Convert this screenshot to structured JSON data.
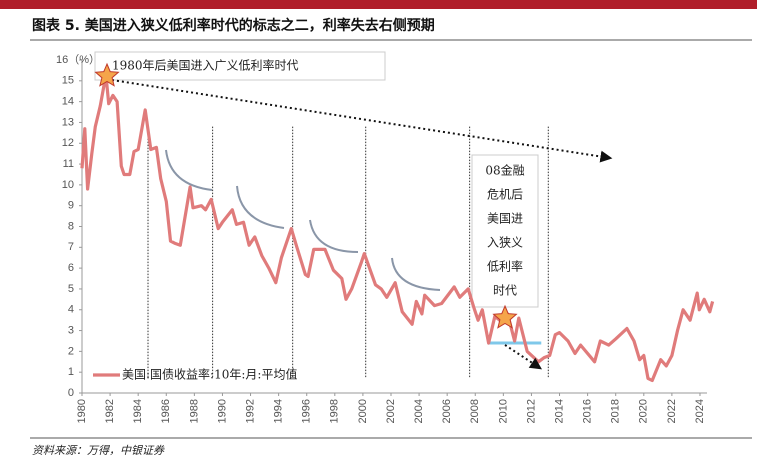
{
  "chart_data": {
    "type": "line",
    "title": "图表 5. 美国进入狭义低利率时代的标志之二，利率失去右侧预期",
    "annotation_1": "1980年后美国进入广义低利率时代",
    "annotation_2": [
      "08金融",
      "危机后",
      "美国进",
      "入狭义",
      "低利率",
      "时代"
    ],
    "source": "资料来源：万得，中银证券",
    "x": [
      1980.0,
      1980.2,
      1980.4,
      1980.7,
      1980.95,
      1981.3,
      1981.7,
      1981.9,
      1982.2,
      1982.5,
      1982.8,
      1983.0,
      1983.4,
      1983.7,
      1984.0,
      1984.5,
      1984.9,
      1985.3,
      1985.6,
      1986.0,
      1986.3,
      1986.6,
      1987.0,
      1987.7,
      1987.9,
      1988.5,
      1988.8,
      1989.2,
      1989.7,
      1990.0,
      1990.7,
      1991.0,
      1991.5,
      1991.9,
      1992.3,
      1992.8,
      1993.3,
      1993.8,
      1994.2,
      1994.9,
      1995.3,
      1995.9,
      1996.1,
      1996.5,
      1997.3,
      1997.9,
      1998.5,
      1998.8,
      1999.2,
      1999.9,
      2000.1,
      2000.9,
      2001.3,
      2001.7,
      2002.3,
      2002.8,
      2003.5,
      2003.8,
      2004.2,
      2004.4,
      2005.1,
      2005.6,
      2006.5,
      2006.9,
      2007.5,
      2007.9,
      2008.2,
      2008.5,
      2008.95,
      2009.4,
      2009.9,
      2010.3,
      2010.8,
      2011.1,
      2011.7,
      2012.5,
      2012.9,
      2013.3,
      2013.7,
      2014.0,
      2014.6,
      2015.1,
      2015.5,
      2016.5,
      2016.9,
      2017.5,
      2018.0,
      2018.8,
      2019.3,
      2019.7,
      2020.0,
      2020.3,
      2020.6,
      2021.2,
      2021.6,
      2022.0,
      2022.4,
      2022.8,
      2023.3,
      2023.8,
      2023.95,
      2024.3,
      2024.7,
      2024.9
    ],
    "series": [
      {
        "name": "美国:国债收益率:10年:月:平均值",
        "color": "#e07b7b",
        "values": [
          10.8,
          12.7,
          9.8,
          11.5,
          12.8,
          13.8,
          15.3,
          13.9,
          14.3,
          14.0,
          10.9,
          10.5,
          10.5,
          11.6,
          11.7,
          13.6,
          11.7,
          11.8,
          10.3,
          9.2,
          7.3,
          7.2,
          7.1,
          9.9,
          8.9,
          9.0,
          8.8,
          9.3,
          7.9,
          8.2,
          8.8,
          8.1,
          8.2,
          7.1,
          7.5,
          6.6,
          6.0,
          5.3,
          6.5,
          7.9,
          7.0,
          5.7,
          5.6,
          6.9,
          6.9,
          5.9,
          5.5,
          4.5,
          5.0,
          6.3,
          6.7,
          5.2,
          5.0,
          4.6,
          5.3,
          3.9,
          3.3,
          4.4,
          3.8,
          4.7,
          4.2,
          4.3,
          5.1,
          4.6,
          5.0,
          4.1,
          3.5,
          4.0,
          2.4,
          3.7,
          3.4,
          3.8,
          2.5,
          3.6,
          2.0,
          1.5,
          1.7,
          1.8,
          2.8,
          2.9,
          2.5,
          1.9,
          2.3,
          1.5,
          2.5,
          2.3,
          2.6,
          3.1,
          2.5,
          1.6,
          1.8,
          0.7,
          0.6,
          1.6,
          1.3,
          1.8,
          3.0,
          4.0,
          3.5,
          4.8,
          4.0,
          4.5,
          3.9,
          4.4
        ]
      }
    ],
    "xlim": [
      1980,
      2024.5
    ],
    "xticks": [
      1980,
      1982,
      1984,
      1986,
      1988,
      1990,
      1992,
      1994,
      1996,
      1998,
      2000,
      2002,
      2004,
      2006,
      2008,
      2010,
      2012,
      2014,
      2016,
      2018,
      2020,
      2022,
      2024
    ],
    "ylim": [
      0,
      16
    ],
    "yticks": [
      0,
      1,
      2,
      3,
      4,
      5,
      6,
      7,
      8,
      9,
      10,
      11,
      12,
      13,
      14,
      15,
      {
        "value": 16,
        "label": "16（%）"
      }
    ],
    "vlines": [
      1984.7,
      1989.3,
      1995.0,
      2000.2,
      2007.6,
      2013.2
    ],
    "support_level": 2.4,
    "support_range": [
      2008.9,
      2012.7
    ],
    "support_color": "#7fc8ea",
    "legend": "lower left"
  }
}
